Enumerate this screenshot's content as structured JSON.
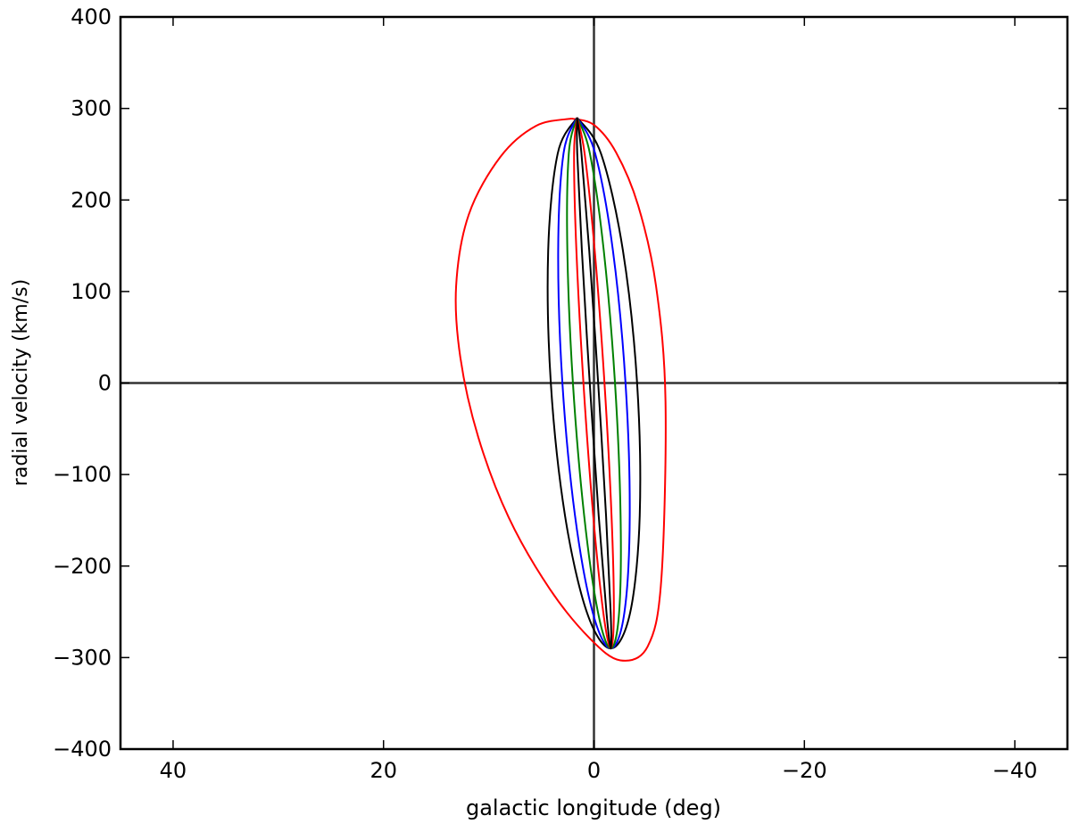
{
  "chart_data": {
    "type": "line",
    "xlabel": "galactic longitude (deg)",
    "ylabel": "radial velocity (km/s)",
    "xlim": [
      45,
      -45
    ],
    "ylim": [
      -400,
      400
    ],
    "xticks": [
      40,
      20,
      0,
      {
        "value": -20,
        "label": "−20"
      },
      {
        "value": -40,
        "label": "−40"
      }
    ],
    "yticks": [
      {
        "value": -400,
        "label": "−400"
      },
      {
        "value": -300,
        "label": "−300"
      },
      {
        "value": -200,
        "label": "−200"
      },
      {
        "value": -100,
        "label": "−100"
      },
      0,
      100,
      200,
      300,
      400
    ],
    "zero_lines": true,
    "series": [
      {
        "color": "#ff0000",
        "x": [
          2.1,
          5.5,
          8.9,
          11.9,
          13.1,
          12.7,
          11.0,
          8.1,
          4.2,
          0.4,
          -2.5,
          -5.1,
          -6.4,
          -6.8,
          -5.9,
          -4.2,
          -2.1,
          0,
          2.1
        ],
        "values": [
          289,
          281,
          247,
          184,
          106,
          28,
          -59,
          -147,
          -225,
          -279,
          -303,
          -288,
          -215,
          -20,
          106,
          194,
          252,
          282,
          289
        ]
      },
      {
        "color": "#000000",
        "x": [
          1.6,
          3.44,
          4.35,
          4.1,
          2.75,
          0.66,
          -1.6,
          -3.44,
          -4.35,
          -4.1,
          -2.75,
          -0.66,
          1.6
        ],
        "values": [
          290,
          251,
          145,
          0,
          -145,
          -251,
          -290,
          -251,
          -145,
          0,
          145,
          251,
          290
        ]
      },
      {
        "color": "#0000ff",
        "x": [
          1.6,
          2.89,
          3.4,
          3.0,
          1.8,
          0.11,
          -1.6,
          -2.89,
          -3.4,
          -3.0,
          -1.8,
          -0.11,
          1.6
        ],
        "values": [
          290,
          251,
          145,
          0,
          -145,
          -251,
          -290,
          -251,
          -145,
          0,
          145,
          251,
          290
        ]
      },
      {
        "color": "#008000",
        "x": [
          1.6,
          2.39,
          2.53,
          2.0,
          0.93,
          -0.39,
          -1.6,
          -2.39,
          -2.53,
          -2.0,
          -0.93,
          0.39,
          1.6
        ],
        "values": [
          290,
          251,
          145,
          0,
          -145,
          -251,
          -290,
          -251,
          -145,
          0,
          145,
          251,
          290
        ]
      },
      {
        "color": "#ff0000",
        "x": [
          1.6,
          1.89,
          1.67,
          1.0,
          0.07,
          -0.89,
          -1.6,
          -1.89,
          -1.67,
          -1.0,
          -0.07,
          0.89,
          1.6
        ],
        "values": [
          290,
          251,
          145,
          0,
          -145,
          -251,
          -290,
          -251,
          -145,
          0,
          145,
          251,
          290
        ]
      },
      {
        "color": "#000000",
        "x": [
          1.6,
          1.59,
          1.15,
          0.4,
          -0.45,
          -1.19,
          -1.6,
          -1.59,
          -1.15,
          -0.4,
          0.45,
          1.19,
          1.6
        ],
        "values": [
          290,
          251,
          145,
          0,
          -145,
          -251,
          -290,
          -251,
          -145,
          0,
          145,
          251,
          290
        ]
      }
    ]
  }
}
